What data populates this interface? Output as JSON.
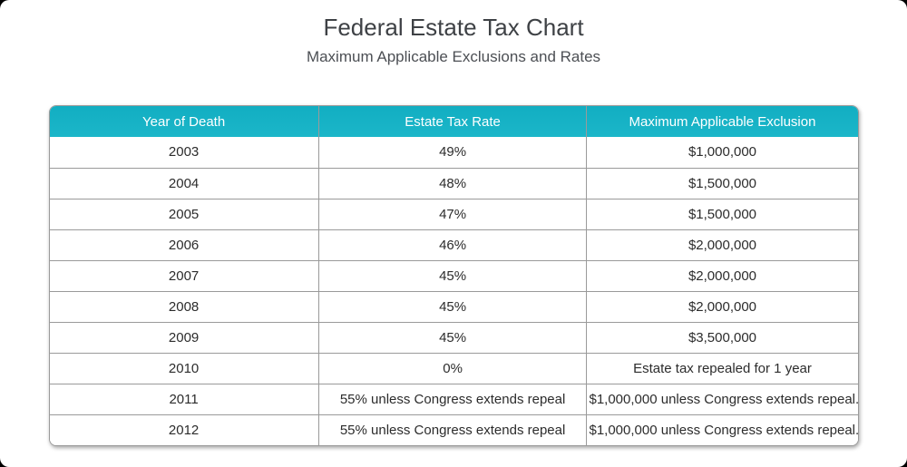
{
  "page": {
    "title": "Federal Estate Tax Chart",
    "subtitle": "Maximum Applicable Exclusions and Rates"
  },
  "colors": {
    "header_bg": "#14b2c5",
    "header_text": "#ffffff",
    "grid_border": "#9a9a9a",
    "title_text": "#3e4145",
    "cell_text": "#2c2c2c",
    "card_bg": "#ffffff",
    "corner_bg": "#000000"
  },
  "table": {
    "headers": [
      "Year of Death",
      "Estate Tax Rate",
      "Maximum Applicable Exclusion"
    ],
    "rows": [
      [
        "2003",
        "49%",
        "$1,000,000"
      ],
      [
        "2004",
        "48%",
        "$1,500,000"
      ],
      [
        "2005",
        "47%",
        "$1,500,000"
      ],
      [
        "2006",
        "46%",
        "$2,000,000"
      ],
      [
        "2007",
        "45%",
        "$2,000,000"
      ],
      [
        "2008",
        "45%",
        "$2,000,000"
      ],
      [
        "2009",
        "45%",
        "$3,500,000"
      ],
      [
        "2010",
        "0%",
        "Estate tax repealed for 1 year"
      ],
      [
        "2011",
        "55% unless Congress extends repeal",
        "$1,000,000 unless Congress extends repeal."
      ],
      [
        "2012",
        "55% unless Congress extends repeal",
        "$1,000,000 unless Congress extends repeal."
      ]
    ]
  },
  "chart_data": {
    "type": "table",
    "title": "Federal Estate Tax Chart",
    "subtitle": "Maximum Applicable Exclusions and Rates",
    "columns": [
      "Year of Death",
      "Estate Tax Rate",
      "Maximum Applicable Exclusion"
    ],
    "rows": [
      [
        "2003",
        "49%",
        "$1,000,000"
      ],
      [
        "2004",
        "48%",
        "$1,500,000"
      ],
      [
        "2005",
        "47%",
        "$1,500,000"
      ],
      [
        "2006",
        "46%",
        "$2,000,000"
      ],
      [
        "2007",
        "45%",
        "$2,000,000"
      ],
      [
        "2008",
        "45%",
        "$2,000,000"
      ],
      [
        "2009",
        "45%",
        "$3,500,000"
      ],
      [
        "2010",
        "0%",
        "Estate tax repealed for 1 year"
      ],
      [
        "2011",
        "55% unless Congress extends repeal",
        "$1,000,000 unless Congress extends repeal."
      ],
      [
        "2012",
        "55% unless Congress extends repeal",
        "$1,000,000 unless Congress extends repeal."
      ]
    ]
  }
}
